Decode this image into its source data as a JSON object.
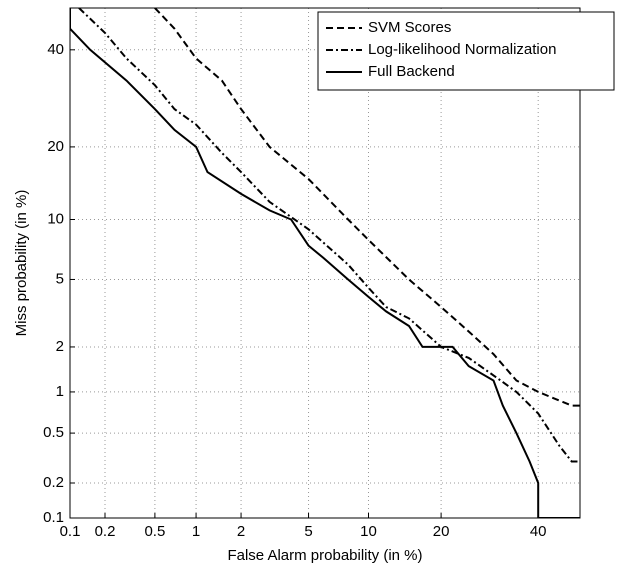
{
  "chart_data": {
    "type": "det",
    "xlabel": "False Alarm probability (in %)",
    "ylabel": "Miss probability (in %)",
    "xlim": [
      0.1,
      50
    ],
    "ylim": [
      0.1,
      50
    ],
    "xticks": [
      0.1,
      0.2,
      0.5,
      1,
      2,
      5,
      10,
      20,
      40
    ],
    "yticks": [
      0.1,
      0.2,
      0.5,
      1,
      2,
      5,
      10,
      20,
      40
    ],
    "grid": true,
    "legend": "upper right",
    "series": [
      {
        "name": "SVM Scores",
        "color": "#000000",
        "dash": "dashed",
        "x": [
          0.5,
          0.7,
          1,
          1.5,
          2,
          3,
          5,
          8,
          10,
          15,
          20,
          25,
          30,
          35,
          40,
          48,
          50
        ],
        "values": [
          50,
          45,
          38,
          33,
          27,
          20,
          15,
          10,
          8,
          5,
          3.5,
          2.5,
          1.8,
          1.2,
          1,
          0.8,
          0.8
        ]
      },
      {
        "name": "Log-likelihood Normalization",
        "color": "#000000",
        "dash": "dashdot",
        "x": [
          0.12,
          0.2,
          0.3,
          0.5,
          0.7,
          1,
          1.5,
          2,
          3,
          5,
          8,
          10,
          12,
          15,
          20,
          25,
          30,
          35,
          40,
          45,
          48,
          50
        ],
        "values": [
          50,
          44,
          38,
          32,
          27,
          24,
          19,
          16,
          12,
          9,
          6,
          4.5,
          3.5,
          3,
          2,
          1.7,
          1.3,
          1,
          0.7,
          0.4,
          0.3,
          0.3
        ]
      },
      {
        "name": "Full Backend",
        "color": "#000000",
        "dash": "solid",
        "x": [
          0.1,
          0.1,
          0.15,
          0.3,
          0.5,
          0.7,
          1,
          1.2,
          2,
          3,
          4,
          5,
          6,
          8,
          10,
          12,
          15,
          17,
          22,
          25,
          30,
          32,
          35,
          38,
          40,
          40,
          50
        ],
        "values": [
          50,
          45,
          40,
          33,
          27,
          23,
          20,
          16,
          13,
          11,
          10,
          7.5,
          6.5,
          5,
          4,
          3.3,
          2.7,
          2,
          2,
          1.5,
          1.2,
          0.8,
          0.5,
          0.3,
          0.2,
          0.1,
          0.1
        ]
      }
    ]
  }
}
